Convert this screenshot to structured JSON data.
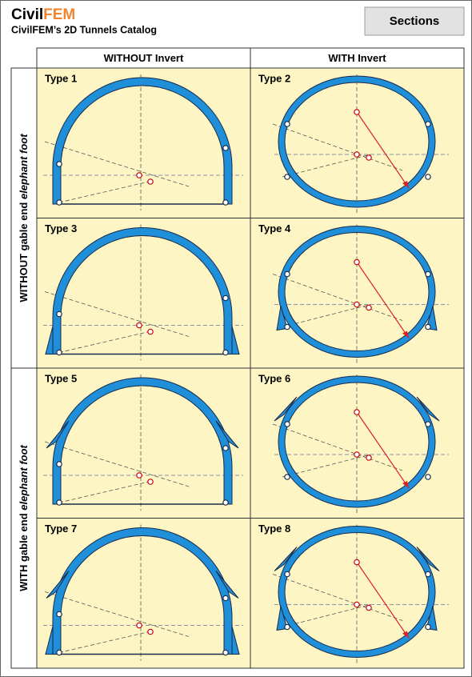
{
  "header": {
    "brand_prefix": "Civil",
    "brand_suffix": "FEM",
    "subtitle": "CivilFEM’s 2D Tunnels Catalog",
    "button": "Sections"
  },
  "table": {
    "columns": [
      "WITHOUT Invert",
      "WITH Invert"
    ],
    "row_groups": [
      {
        "label": "WITHOUT gable end ",
        "label_italic": "elephant foot"
      },
      {
        "label": "WITH gable end ",
        "label_italic": "elephant foot"
      }
    ],
    "cells": [
      "Type 1",
      "Type 2",
      "Type 3",
      "Type 4",
      "Type 5",
      "Type 6",
      "Type 7",
      "Type 8"
    ]
  }
}
